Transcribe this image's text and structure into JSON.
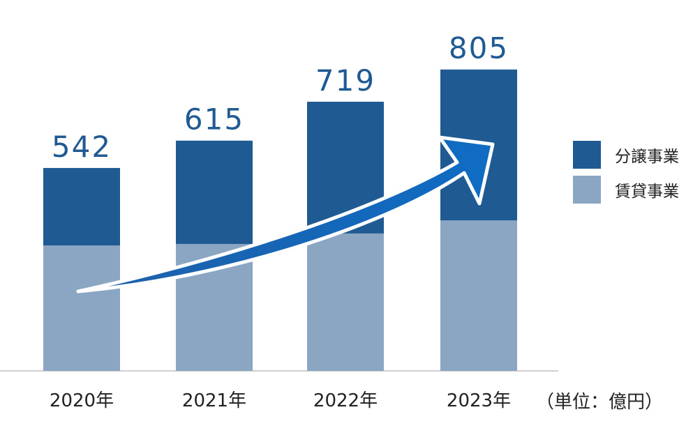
{
  "chart_data": {
    "type": "bar",
    "stacked": true,
    "categories": [
      "2020年",
      "2021年",
      "2022年",
      "2023年"
    ],
    "series": [
      {
        "name": "賃貸事業",
        "values": [
          335,
          339,
          367,
          402
        ],
        "color": "#8aa6c2"
      },
      {
        "name": "分譲事業",
        "values": [
          207,
          276,
          352,
          403
        ],
        "color": "#1f5a93"
      }
    ],
    "totals": [
      542,
      615,
      719,
      805
    ],
    "unit_label": "（単位：億円）",
    "ylim": [
      0,
      850
    ],
    "legend_placement": "right",
    "grid": false,
    "trend_arrow": true,
    "arrow_color": "#1565b3"
  }
}
